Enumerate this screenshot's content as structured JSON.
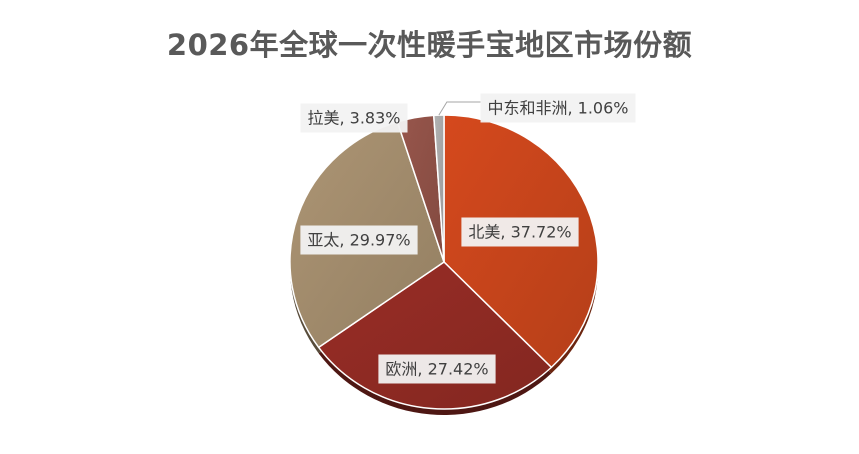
{
  "chart_data": {
    "type": "pie",
    "title": "2026年全球一次性暖手宝地区市场份额",
    "categories": [
      "北美",
      "欧洲",
      "亚太",
      "拉美",
      "中东和非洲"
    ],
    "values": [
      37.72,
      27.42,
      29.97,
      3.83,
      1.06
    ],
    "unit": "%",
    "data_labels": [
      "北美, 37.72%",
      "欧洲, 27.42%",
      "亚太, 29.97%",
      "拉美, 3.83%",
      "中东和非洲, 1.06%"
    ],
    "colors": [
      "#C5441B",
      "#8E2A23",
      "#A08A6B",
      "#8D5046",
      "#A6A6A6"
    ],
    "legend": "none",
    "start_angle": "12 o'clock",
    "direction": "clockwise"
  }
}
